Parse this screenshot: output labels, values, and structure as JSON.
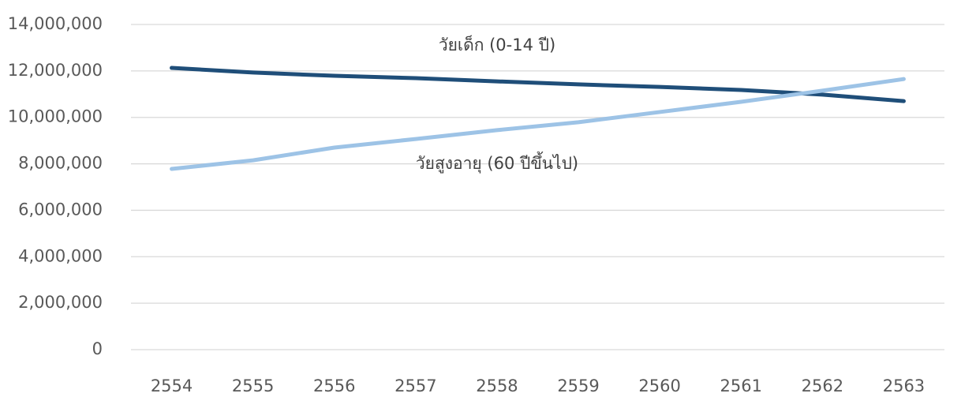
{
  "chart_data": {
    "type": "line",
    "categories": [
      "2554",
      "2555",
      "2556",
      "2557",
      "2558",
      "2559",
      "2560",
      "2561",
      "2562",
      "2563"
    ],
    "series": [
      {
        "name": "วัยเด็ก (0-14 ปี)",
        "color": "#1f4e79",
        "values": [
          12130000,
          11930000,
          11790000,
          11690000,
          11550000,
          11420000,
          11310000,
          11180000,
          10980000,
          10700000
        ]
      },
      {
        "name": "วัยสูงอายุ (60 ปีขึ้นไป)",
        "color": "#9dc3e6",
        "values": [
          7780000,
          8150000,
          8700000,
          9070000,
          9450000,
          9790000,
          10230000,
          10670000,
          11150000,
          11650000
        ]
      }
    ],
    "ylim": [
      0,
      14000000
    ],
    "yticks": [
      0,
      {
        "value": 2000000,
        "label": "2,000,000"
      },
      {
        "value": 4000000,
        "label": "4,000,000"
      },
      {
        "value": 6000000,
        "label": "6,000,000"
      },
      {
        "value": 8000000,
        "label": "8,000,000"
      },
      {
        "value": 10000000,
        "label": "10,000,000"
      },
      {
        "value": 12000000,
        "label": "12,000,000"
      },
      {
        "value": 14000000,
        "label": "14,000,000"
      }
    ],
    "grid": true
  }
}
